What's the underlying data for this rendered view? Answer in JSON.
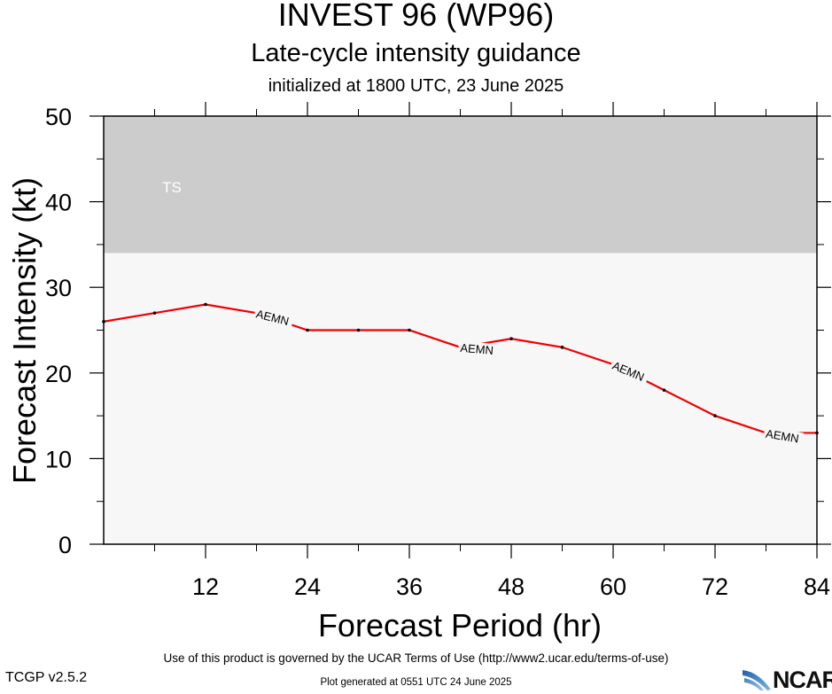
{
  "header": {
    "title": "INVEST 96 (WP96)",
    "subtitle": "Late-cycle intensity guidance",
    "initialized": "initialized at 1800 UTC, 23 June 2025"
  },
  "footer": {
    "terms": "Use of this product is governed by the UCAR Terms of Use (http://www2.ucar.edu/terms-of-use)",
    "version": "TCGP v2.5.2",
    "generated": "Plot generated at 0551 UTC   24 June 2025",
    "logo_text": "NCAR"
  },
  "chart_data": {
    "type": "line",
    "title": "INVEST 96 (WP96)",
    "xlabel": "Forecast Period (hr)",
    "ylabel": "Forecast Intensity (kt)",
    "xlim": [
      0,
      84
    ],
    "ylim": [
      0,
      50
    ],
    "x_ticks": [
      12,
      24,
      36,
      48,
      60,
      72,
      84
    ],
    "y_ticks": [
      0,
      10,
      20,
      30,
      40,
      50
    ],
    "x_ticks_minor": [
      6,
      18,
      30,
      42,
      54,
      66,
      78
    ],
    "y_ticks_minor": [
      5,
      15,
      25,
      35,
      45
    ],
    "bands": [
      {
        "label": "TS",
        "from": 34,
        "to": 50,
        "color": "#cccccc"
      },
      {
        "label": "",
        "from": 0,
        "to": 34,
        "color": "#f7f7f7"
      }
    ],
    "series": [
      {
        "name": "AEMN",
        "color": "#ee0000",
        "x": [
          0,
          6,
          12,
          18,
          24,
          30,
          36,
          42,
          48,
          54,
          60,
          66,
          72,
          78,
          84
        ],
        "y": [
          26,
          27,
          28,
          27,
          25,
          25,
          25,
          23,
          24,
          23,
          21,
          18,
          15,
          13,
          13
        ],
        "label_at_x": [
          18,
          42,
          60,
          78
        ]
      }
    ]
  }
}
